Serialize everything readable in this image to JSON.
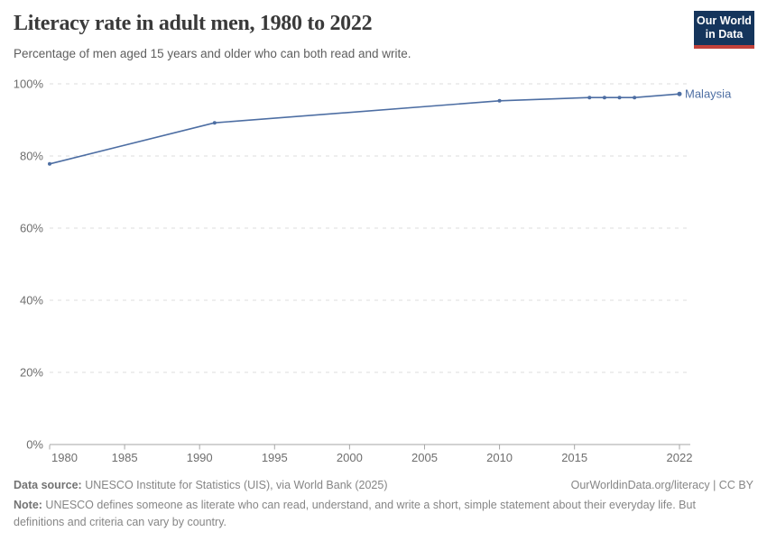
{
  "header": {
    "title": "Literacy rate in adult men, 1980 to 2022",
    "subtitle": "Percentage of men aged 15 years and older who can both read and write.",
    "logo": {
      "line1": "Our World",
      "line2": "in Data"
    }
  },
  "chart_data": {
    "type": "line",
    "title": "Literacy rate in adult men, 1980 to 2022",
    "xlabel": "",
    "ylabel": "",
    "xlim": [
      1980,
      2022
    ],
    "ylim": [
      0,
      100
    ],
    "x_ticks": [
      1980,
      1985,
      1990,
      1995,
      2000,
      2005,
      2010,
      2015,
      2022
    ],
    "y_ticks": [
      0,
      20,
      40,
      60,
      80,
      100
    ],
    "y_tick_suffix": "%",
    "grid": "horizontal-dashed",
    "legend_position": "end-of-line-label",
    "series": [
      {
        "name": "Malaysia",
        "color": "#4d6ea3",
        "points": [
          [
            1980,
            77.8
          ],
          [
            1991,
            89.2
          ],
          [
            2010,
            95.3
          ],
          [
            2016,
            96.2
          ],
          [
            2017,
            96.2
          ],
          [
            2018,
            96.2
          ],
          [
            2019,
            96.2
          ],
          [
            2022,
            97.2
          ]
        ]
      }
    ]
  },
  "footer": {
    "datasource_label": "Data source:",
    "datasource_text": " UNESCO Institute for Statistics (UIS), via World Bank (2025)",
    "license": "OurWorldinData.org/literacy | CC BY",
    "note_label": "Note:",
    "note_text": " UNESCO defines someone as literate who can read, understand, and write a short, simple statement about their everyday life. But definitions and criteria can vary by country."
  },
  "colors": {
    "accent_line": "#4d6ea3",
    "logo_bg": "#15355c",
    "logo_red": "#c2413a",
    "gridline": "#dcdcdc",
    "axis": "#a6a6a6",
    "tick_text": "#6e6e6e",
    "title_text": "#3a3a3a",
    "subtitle_text": "#5e5e5e",
    "footer_text": "#868686"
  }
}
